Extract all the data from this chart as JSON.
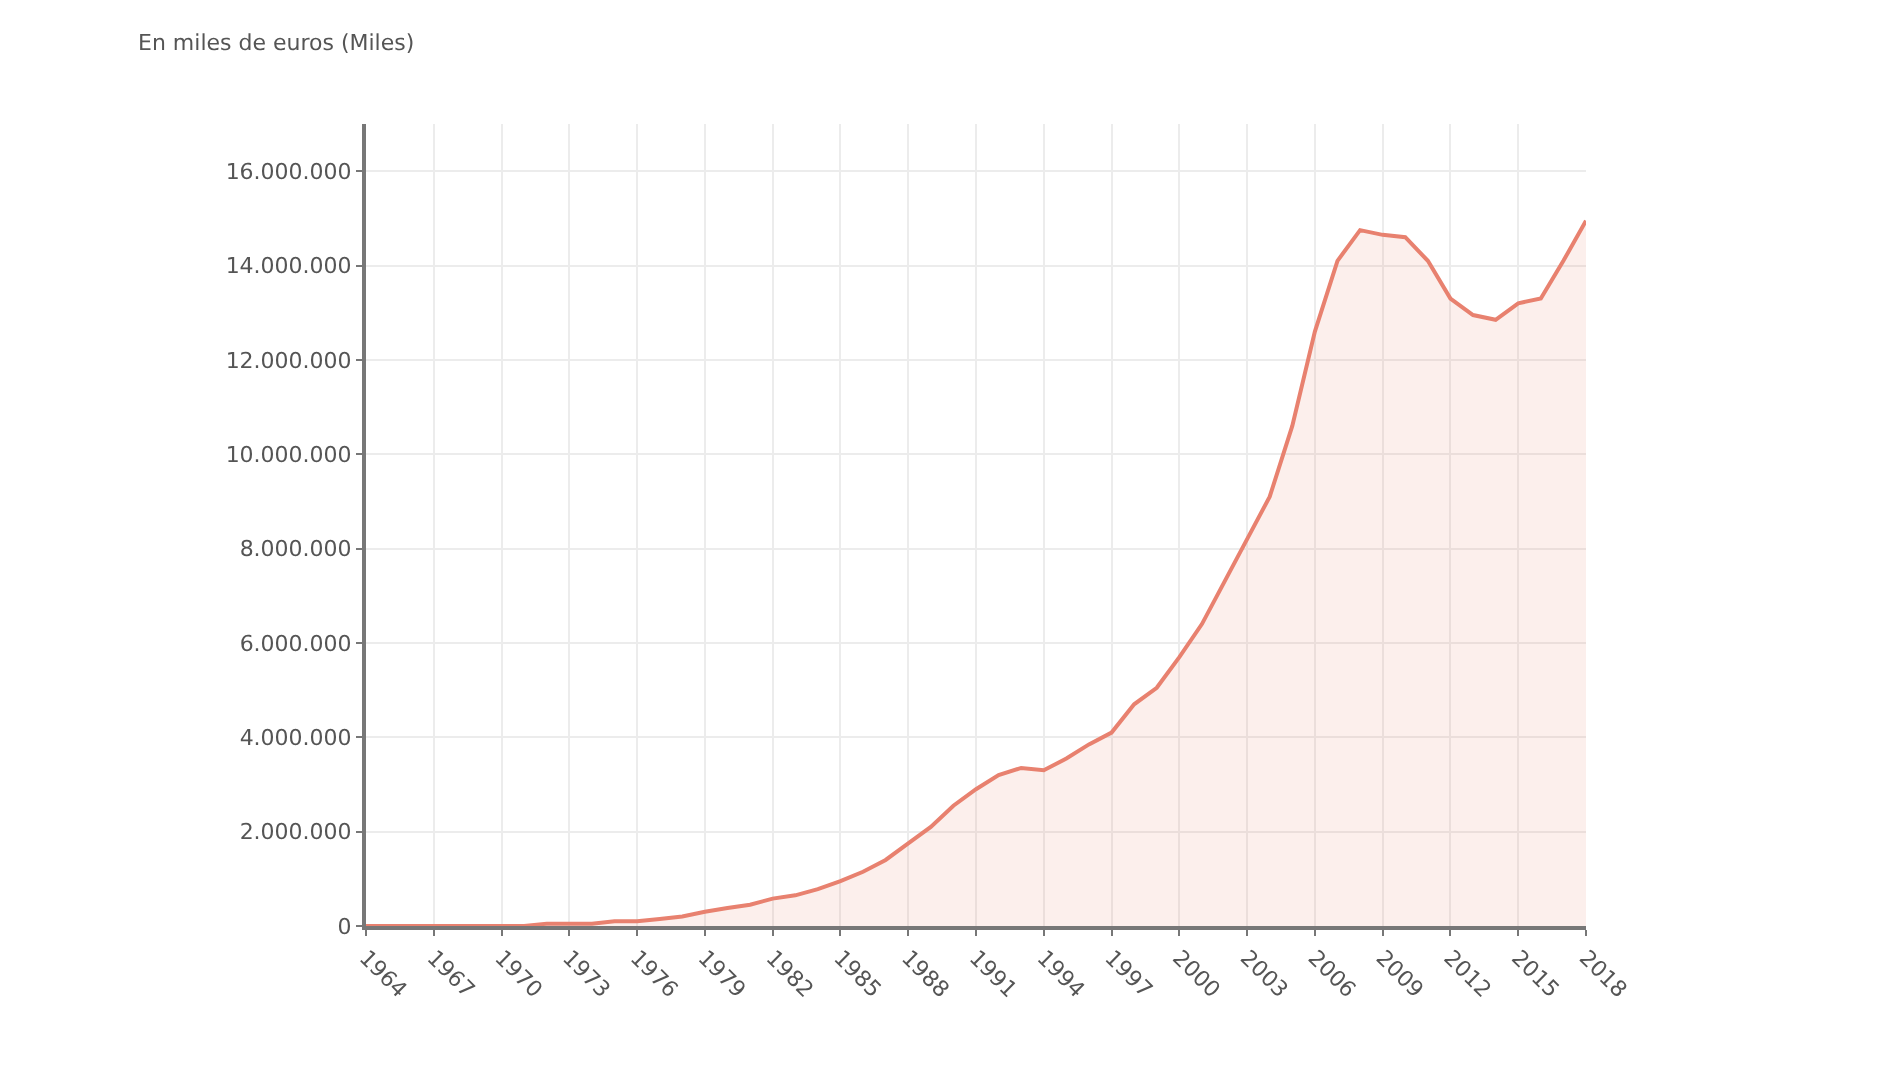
{
  "chart_data": {
    "type": "area",
    "ylabel": "En miles de euros (Miles)",
    "x": [
      1964,
      1965,
      1966,
      1967,
      1968,
      1969,
      1970,
      1971,
      1972,
      1973,
      1974,
      1975,
      1976,
      1977,
      1978,
      1979,
      1980,
      1981,
      1982,
      1983,
      1984,
      1985,
      1986,
      1987,
      1988,
      1989,
      1990,
      1991,
      1992,
      1993,
      1994,
      1995,
      1996,
      1997,
      1998,
      1999,
      2000,
      2001,
      2002,
      2003,
      2004,
      2005,
      2006,
      2007,
      2008,
      2009,
      2010,
      2011,
      2012,
      2013,
      2014,
      2015,
      2016,
      2017,
      2018
    ],
    "series": [
      {
        "color": "#e8816f",
        "values": [
          0,
          0,
          0,
          0,
          0,
          0,
          0,
          0,
          50000,
          50000,
          50000,
          100000,
          100000,
          150000,
          200000,
          300000,
          380000,
          450000,
          580000,
          650000,
          780000,
          950000,
          1150000,
          1400000,
          1750000,
          2100000,
          2550000,
          2900000,
          3200000,
          3350000,
          3300000,
          3550000,
          3850000,
          4100000,
          4700000,
          5050000,
          5700000,
          6400000,
          7300000,
          8200000,
          9100000,
          10600000,
          12600000,
          14100000,
          14750000,
          14650000,
          14600000,
          14100000,
          13300000,
          12950000,
          12850000,
          13200000,
          13300000,
          14100000,
          14950000
        ]
      }
    ],
    "xlim": [
      1964,
      2018
    ],
    "xticks": [
      1964,
      1967,
      1970,
      1973,
      1976,
      1979,
      1982,
      1985,
      1988,
      1991,
      1994,
      1997,
      2000,
      2003,
      2006,
      2009,
      2012,
      2015,
      2018
    ],
    "ylim": [
      0,
      17000000
    ],
    "yticks": [
      {
        "value": 0,
        "label": "0"
      },
      {
        "value": 2000000,
        "label": "2.000.000"
      },
      {
        "value": 4000000,
        "label": "4.000.000"
      },
      {
        "value": 6000000,
        "label": "6.000.000"
      },
      {
        "value": 8000000,
        "label": "8.000.000"
      },
      {
        "value": 10000000,
        "label": "10.000.000"
      },
      {
        "value": 12000000,
        "label": "12.000.000"
      },
      {
        "value": 14000000,
        "label": "14.000.000"
      },
      {
        "value": 16000000,
        "label": "16.000.000"
      }
    ],
    "grid": true
  }
}
